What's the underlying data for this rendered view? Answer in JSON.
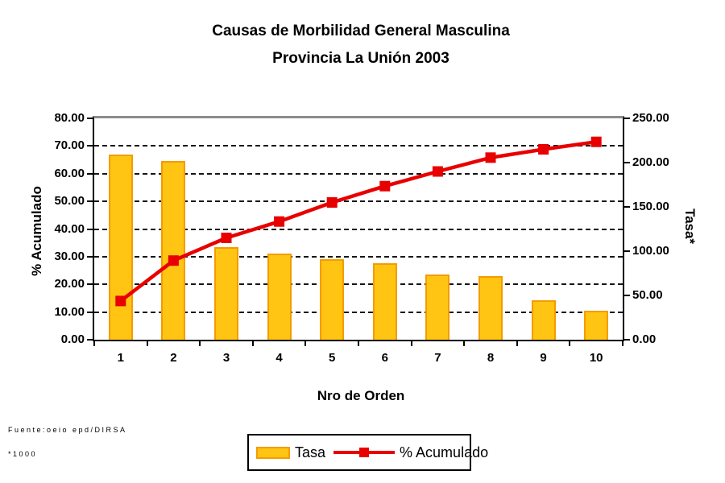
{
  "title": {
    "line1": "Causas de Morbilidad General Masculina",
    "line2": "Provincia La Unión 2003"
  },
  "chart_data": {
    "type": "bar+line pareto combo",
    "categories": [
      "1",
      "2",
      "3",
      "4",
      "5",
      "6",
      "7",
      "8",
      "9",
      "10"
    ],
    "series": [
      {
        "name": "Tasa",
        "type": "bar",
        "axis": "right",
        "values": [
          209,
          202,
          105,
          97,
          91,
          86,
          74,
          72,
          45,
          33
        ]
      },
      {
        "name": "% Acumulado",
        "type": "line",
        "axis": "left",
        "values": [
          14.0,
          28.6,
          36.8,
          42.7,
          49.6,
          55.5,
          60.8,
          65.8,
          68.8,
          71.5
        ]
      }
    ],
    "xlabel": "Nro de Orden",
    "left_axis": {
      "title": "% Acumulado",
      "min": 0,
      "max": 80,
      "step": 10,
      "tick_labels": [
        "0.00",
        "10.00",
        "20.00",
        "30.00",
        "40.00",
        "50.00",
        "60.00",
        "70.00",
        "80.00"
      ]
    },
    "right_axis": {
      "title": "Tasa*",
      "min": 0,
      "max": 250,
      "step": 50,
      "tick_labels": [
        "0.00",
        "50.00",
        "100.00",
        "150.00",
        "200.00",
        "250.00"
      ]
    },
    "grid": "horizontal dashed, no line at min/max",
    "legend_position": "bottom center, boxed"
  },
  "legend": {
    "tasa_label": "Tasa",
    "acumulado_label": "% Acumulado"
  },
  "footer": {
    "source": "Fuente:oeio epd/DIRSA",
    "scale_note": "*1000"
  },
  "colors": {
    "bar_fill": "#ffc512",
    "bar_border": "#f59b00",
    "line": "#e80000",
    "grid": "#161616",
    "plot_border_top": "#8c8c8c",
    "axis": "#000000",
    "background": "#ffffff"
  }
}
